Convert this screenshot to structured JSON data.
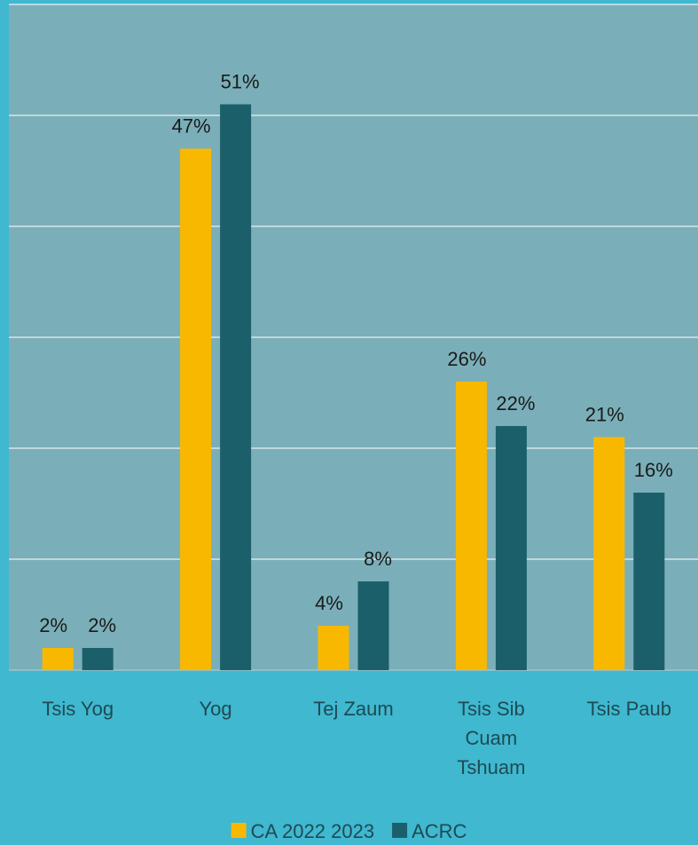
{
  "chart_data": {
    "type": "bar",
    "categories": [
      "Tsis Yog",
      "Yog",
      "Tej Zaum",
      "Tsis Sib Cuam Tshuam",
      "Tsis Paub"
    ],
    "series": [
      {
        "name": "CA 2022 2023",
        "color": "#f9b800",
        "values": [
          2,
          47,
          4,
          26,
          21
        ],
        "value_labels": [
          "2%",
          "47%",
          "4%",
          "26%",
          "21%"
        ]
      },
      {
        "name": "ACRC",
        "color": "#1b5f6b",
        "values": [
          2,
          51,
          8,
          22,
          16
        ],
        "value_labels": [
          "2%",
          "51%",
          "8%",
          "22%",
          "16%"
        ]
      }
    ],
    "ylim": [
      0,
      60
    ],
    "yticks": [
      0,
      10,
      20,
      30,
      40,
      50,
      60
    ],
    "grid": true,
    "legend": "bottom"
  }
}
